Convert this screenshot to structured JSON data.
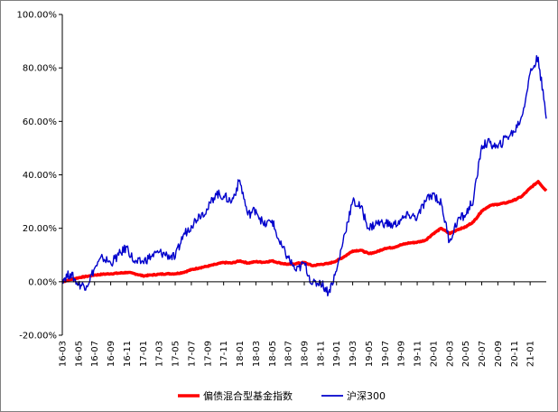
{
  "chart_data": {
    "type": "line",
    "title": "",
    "xlabel": "",
    "ylabel": "",
    "grid": false,
    "legend_position": "bottom",
    "ylim": [
      -0.2,
      1.0
    ],
    "y_ticks": [
      -0.2,
      0.0,
      0.2,
      0.4,
      0.6,
      0.8,
      1.0
    ],
    "y_tick_labels": [
      "-20.00%",
      "0.00%",
      "20.00%",
      "40.00%",
      "60.00%",
      "80.00%",
      "100.00%"
    ],
    "x_tick_labels": [
      "16-03",
      "16-05",
      "16-07",
      "16-09",
      "16-11",
      "17-01",
      "17-03",
      "17-05",
      "17-07",
      "17-09",
      "17-11",
      "18-01",
      "18-03",
      "18-05",
      "18-07",
      "18-09",
      "18-11",
      "19-01",
      "19-03",
      "19-05",
      "19-07",
      "19-09",
      "19-11",
      "20-01",
      "20-03",
      "20-05",
      "20-07",
      "20-09",
      "20-11",
      "21-01"
    ],
    "x_range": [
      "16-03",
      "21-03"
    ],
    "series": [
      {
        "name": "偏债混合型基金指数",
        "color": "#FF0000",
        "points": [
          [
            "16-03",
            0.0
          ],
          [
            "16-04",
            0.008
          ],
          [
            "16-05",
            0.015
          ],
          [
            "16-06",
            0.02
          ],
          [
            "16-07",
            0.025
          ],
          [
            "16-08",
            0.028
          ],
          [
            "16-09",
            0.03
          ],
          [
            "16-10",
            0.032
          ],
          [
            "16-11",
            0.035
          ],
          [
            "16-12",
            0.03
          ],
          [
            "17-01",
            0.022
          ],
          [
            "17-02",
            0.025
          ],
          [
            "17-03",
            0.028
          ],
          [
            "17-04",
            0.03
          ],
          [
            "17-05",
            0.03
          ],
          [
            "17-06",
            0.035
          ],
          [
            "17-07",
            0.045
          ],
          [
            "17-08",
            0.052
          ],
          [
            "17-09",
            0.058
          ],
          [
            "17-10",
            0.065
          ],
          [
            "17-11",
            0.072
          ],
          [
            "17-12",
            0.07
          ],
          [
            "18-01",
            0.078
          ],
          [
            "18-02",
            0.07
          ],
          [
            "18-03",
            0.075
          ],
          [
            "18-04",
            0.073
          ],
          [
            "18-05",
            0.078
          ],
          [
            "18-06",
            0.07
          ],
          [
            "18-07",
            0.065
          ],
          [
            "18-08",
            0.068
          ],
          [
            "18-09",
            0.072
          ],
          [
            "18-10",
            0.06
          ],
          [
            "18-11",
            0.065
          ],
          [
            "18-12",
            0.068
          ],
          [
            "19-01",
            0.078
          ],
          [
            "19-02",
            0.095
          ],
          [
            "19-03",
            0.115
          ],
          [
            "19-04",
            0.118
          ],
          [
            "19-05",
            0.105
          ],
          [
            "19-06",
            0.112
          ],
          [
            "19-07",
            0.125
          ],
          [
            "19-08",
            0.128
          ],
          [
            "19-09",
            0.138
          ],
          [
            "19-10",
            0.145
          ],
          [
            "19-11",
            0.148
          ],
          [
            "19-12",
            0.155
          ],
          [
            "20-01",
            0.18
          ],
          [
            "20-02",
            0.2
          ],
          [
            "20-03",
            0.18
          ],
          [
            "20-04",
            0.195
          ],
          [
            "20-05",
            0.205
          ],
          [
            "20-06",
            0.225
          ],
          [
            "20-07",
            0.265
          ],
          [
            "20-08",
            0.285
          ],
          [
            "20-09",
            0.29
          ],
          [
            "20-10",
            0.295
          ],
          [
            "20-11",
            0.305
          ],
          [
            "20-12",
            0.32
          ],
          [
            "21-01",
            0.35
          ],
          [
            "21-02",
            0.375
          ],
          [
            "21-03",
            0.34
          ]
        ]
      },
      {
        "name": "沪深300",
        "color": "#0000CC",
        "points": [
          [
            "16-03",
            0.01
          ],
          [
            "16-04",
            0.03
          ],
          [
            "16-05",
            -0.01
          ],
          [
            "16-06",
            -0.015
          ],
          [
            "16-07",
            0.05
          ],
          [
            "16-08",
            0.09
          ],
          [
            "16-09",
            0.07
          ],
          [
            "16-10",
            0.1
          ],
          [
            "16-11",
            0.13
          ],
          [
            "16-12",
            0.07
          ],
          [
            "17-01",
            0.075
          ],
          [
            "17-02",
            0.095
          ],
          [
            "17-03",
            0.11
          ],
          [
            "17-04",
            0.1
          ],
          [
            "17-05",
            0.09
          ],
          [
            "17-06",
            0.175
          ],
          [
            "17-07",
            0.21
          ],
          [
            "17-08",
            0.25
          ],
          [
            "17-09",
            0.27
          ],
          [
            "17-10",
            0.33
          ],
          [
            "17-11",
            0.32
          ],
          [
            "17-12",
            0.3
          ],
          [
            "18-01",
            0.38
          ],
          [
            "18-02",
            0.25
          ],
          [
            "18-03",
            0.27
          ],
          [
            "18-04",
            0.21
          ],
          [
            "18-05",
            0.23
          ],
          [
            "18-06",
            0.14
          ],
          [
            "18-07",
            0.09
          ],
          [
            "18-08",
            0.04
          ],
          [
            "18-09",
            0.07
          ],
          [
            "18-10",
            -0.01
          ],
          [
            "18-11",
            0.0
          ],
          [
            "18-12",
            -0.04
          ],
          [
            "19-01",
            0.04
          ],
          [
            "19-02",
            0.18
          ],
          [
            "19-03",
            0.3
          ],
          [
            "19-04",
            0.28
          ],
          [
            "19-05",
            0.2
          ],
          [
            "19-06",
            0.22
          ],
          [
            "19-07",
            0.22
          ],
          [
            "19-08",
            0.21
          ],
          [
            "19-09",
            0.23
          ],
          [
            "19-10",
            0.25
          ],
          [
            "19-11",
            0.24
          ],
          [
            "19-12",
            0.3
          ],
          [
            "20-01",
            0.33
          ],
          [
            "20-02",
            0.29
          ],
          [
            "20-03",
            0.15
          ],
          [
            "20-04",
            0.23
          ],
          [
            "20-05",
            0.25
          ],
          [
            "20-06",
            0.31
          ],
          [
            "20-07",
            0.51
          ],
          [
            "20-08",
            0.52
          ],
          [
            "20-09",
            0.5
          ],
          [
            "20-10",
            0.54
          ],
          [
            "20-11",
            0.56
          ],
          [
            "20-12",
            0.62
          ],
          [
            "21-01",
            0.78
          ],
          [
            "21-02",
            0.84
          ],
          [
            "21-03",
            0.61
          ]
        ]
      }
    ]
  }
}
